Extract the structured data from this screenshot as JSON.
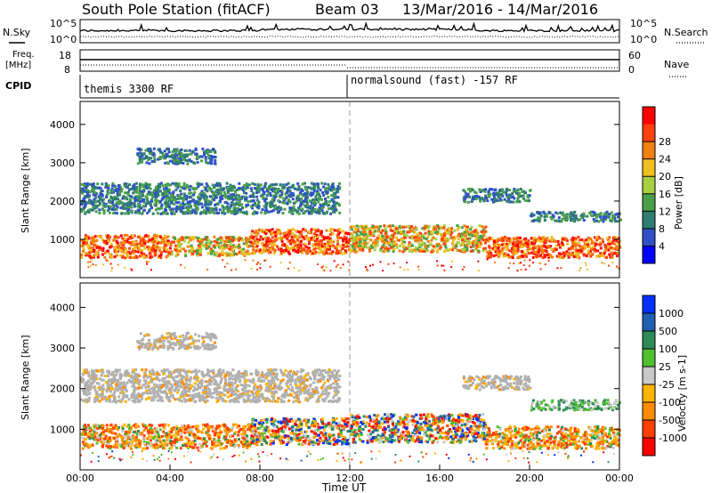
{
  "header": {
    "station": "South Pole Station (fitACF)",
    "beam": "Beam 03",
    "date_range": "13/Mar/2016 - 14/Mar/2016"
  },
  "nsky_panel": {
    "left_label": "N.Sky",
    "left_tick_top": "10^5",
    "left_tick_bottom": "10^0",
    "right_tick_top": "10^5",
    "right_tick_bottom": "10^0",
    "right_label": "N.Search"
  },
  "freq_panel": {
    "left_label_line1": "Freq.",
    "left_label_line2": "[MHz]",
    "left_tick_top": "18",
    "left_tick_bottom": "8",
    "right_tick_top": "60",
    "right_tick_bottom": "0",
    "right_label": "Nave"
  },
  "cpid_panel": {
    "label": "CPID",
    "mode_1": "themis 3300 RF",
    "mode_2": "normalsound (fast) -157 RF"
  },
  "colors": {
    "power": [
      "#0000ff",
      "#3050c8",
      "#2e7d72",
      "#4aa04a",
      "#a8d040",
      "#f0c020",
      "#f08010",
      "#ff4010",
      "#ff0000"
    ],
    "velocity": [
      "#ff0000",
      "#ff4000",
      "#ff8c00",
      "#ffb400",
      "#c8c8c8",
      "#50c030",
      "#2e8b57",
      "#2060b0",
      "#0030ff"
    ],
    "ground_scatter": "#b0b0b0",
    "axis": "#000000"
  },
  "chart_data": [
    {
      "type": "heatmap",
      "name": "power",
      "ylabel": "Slant Range [km]",
      "ylim": [
        0,
        4600
      ],
      "yticks": [
        "1000",
        "2000",
        "3000",
        "4000"
      ],
      "colorbar_label": "Power [dB]",
      "colorbar_ticks": [
        "4",
        "8",
        "12",
        "16",
        "20",
        "24",
        "28"
      ],
      "xlim_hours": [
        0,
        24
      ],
      "mode_change_hour": 12,
      "scatter_regions": [
        {
          "t0": 0.0,
          "t1": 4.0,
          "r0": 550,
          "r1": 1150,
          "level": "high"
        },
        {
          "t0": 4.0,
          "t1": 7.5,
          "r0": 600,
          "r1": 1100,
          "level": "mid"
        },
        {
          "t0": 7.5,
          "t1": 12.0,
          "r0": 650,
          "r1": 1300,
          "level": "high"
        },
        {
          "t0": 12.0,
          "t1": 18.0,
          "r0": 700,
          "r1": 1400,
          "level": "mid"
        },
        {
          "t0": 18.0,
          "t1": 24.0,
          "r0": 550,
          "r1": 1100,
          "level": "high"
        },
        {
          "t0": 0.0,
          "t1": 11.5,
          "r0": 1700,
          "r1": 2500,
          "level": "low"
        },
        {
          "t0": 2.5,
          "t1": 6.0,
          "r0": 3000,
          "r1": 3400,
          "level": "low"
        },
        {
          "t0": 17.0,
          "t1": 20.0,
          "r0": 2000,
          "r1": 2350,
          "level": "low"
        },
        {
          "t0": 20.0,
          "t1": 24.0,
          "r0": 1500,
          "r1": 1750,
          "level": "low"
        }
      ]
    },
    {
      "type": "heatmap",
      "name": "velocity",
      "ylabel": "Slant Range [km]",
      "ylim": [
        0,
        4600
      ],
      "yticks": [
        "1000",
        "2000",
        "3000",
        "4000"
      ],
      "colorbar_label": "Velocity [m s-1]",
      "colorbar_ticks": [
        "1000",
        "500",
        "100",
        "25",
        "-25",
        "-100",
        "-500",
        "-1000"
      ],
      "xlabel": "Time UT",
      "xticks": [
        "00:00",
        "04:00",
        "08:00",
        "12:00",
        "16:00",
        "20:00",
        "00:00"
      ],
      "xlim_hours": [
        0,
        24
      ],
      "mode_change_hour": 12,
      "scatter_regions": [
        {
          "t0": 0.0,
          "t1": 7.5,
          "r0": 550,
          "r1": 1150,
          "level": "neg"
        },
        {
          "t0": 7.5,
          "t1": 12.0,
          "r0": 650,
          "r1": 1300,
          "level": "mix"
        },
        {
          "t0": 12.0,
          "t1": 18.0,
          "r0": 700,
          "r1": 1400,
          "level": "mix"
        },
        {
          "t0": 18.0,
          "t1": 24.0,
          "r0": 550,
          "r1": 1100,
          "level": "neg"
        },
        {
          "t0": 0.0,
          "t1": 11.5,
          "r0": 1700,
          "r1": 2500,
          "level": "gs"
        },
        {
          "t0": 2.5,
          "t1": 6.0,
          "r0": 3000,
          "r1": 3400,
          "level": "gs"
        },
        {
          "t0": 17.0,
          "t1": 20.0,
          "r0": 2000,
          "r1": 2350,
          "level": "gs"
        },
        {
          "t0": 20.0,
          "t1": 24.0,
          "r0": 1500,
          "r1": 1750,
          "level": "pos"
        }
      ]
    }
  ]
}
